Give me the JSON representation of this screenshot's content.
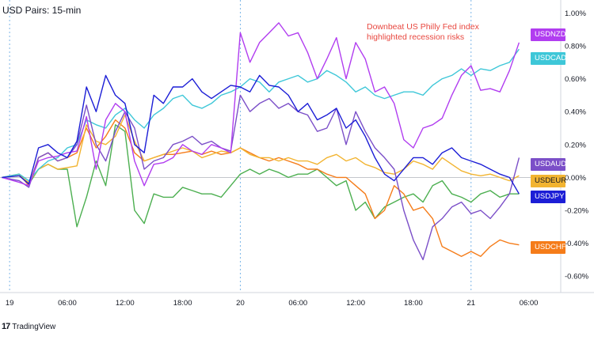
{
  "title": "USD Pairs: 15-min",
  "brand": "TradingView",
  "brand_icon": "tradingview-logo-icon",
  "annotation": "Downbeat US Philly Fed index\nhighlighted recession risks",
  "colors": {
    "USDNZD": "#b13df0",
    "USDCAD": "#3ec7d8",
    "USDAUD": "#7b4fc8",
    "USDEUR": "#f2b431",
    "USDJPY": "#1c1ed6",
    "USDCHF": "#f57c19",
    "green": "#4caf50",
    "annotation": "#e8473f",
    "grid": "#e0e3eb",
    "session": "#7cb6e8"
  },
  "chart_data": {
    "type": "line",
    "title": "USD Pairs: 15-min",
    "ylim": [
      -0.7,
      1.05
    ],
    "y_ticks": [
      "1.00%",
      "0.80%",
      "0.60%",
      "0.40%",
      "0.20%",
      "0.00%",
      "-0.20%",
      "-0.40%",
      "-0.60%"
    ],
    "x_ticks": [
      "19",
      "06:00",
      "12:00",
      "18:00",
      "20",
      "06:00",
      "12:00",
      "18:00",
      "21",
      "06:00"
    ],
    "x_tick_hours": [
      0,
      6,
      12,
      18,
      24,
      30,
      36,
      42,
      48,
      54
    ],
    "session_breaks_hours": [
      0,
      24,
      48
    ],
    "xlim_hours": [
      -1,
      57
    ],
    "series": [
      {
        "name": "USDNZD",
        "last_label": "USDNZD",
        "x": [
          -0.8,
          1,
          2,
          3,
          4,
          5,
          6,
          7,
          8,
          9,
          10,
          11,
          12,
          13,
          14,
          15,
          16,
          17,
          18,
          19,
          20,
          21,
          22,
          23,
          24,
          25,
          26,
          27,
          28,
          29,
          30,
          31,
          32,
          33,
          34,
          35,
          36,
          37,
          38,
          39,
          40,
          41,
          42,
          43,
          44,
          45,
          46,
          47,
          48,
          49,
          50,
          51,
          52,
          53
        ],
        "y": [
          0.0,
          -0.03,
          -0.05,
          0.1,
          0.12,
          0.13,
          0.15,
          0.16,
          0.37,
          0.05,
          0.35,
          0.45,
          0.4,
          0.1,
          -0.05,
          0.08,
          0.09,
          0.12,
          0.2,
          0.16,
          0.14,
          0.2,
          0.18,
          0.15,
          0.88,
          0.7,
          0.82,
          0.88,
          0.94,
          0.86,
          0.88,
          0.76,
          0.6,
          0.72,
          0.85,
          0.6,
          0.82,
          0.72,
          0.52,
          0.55,
          0.45,
          0.23,
          0.18,
          0.3,
          0.32,
          0.36,
          0.5,
          0.62,
          0.68,
          0.53,
          0.54,
          0.52,
          0.65,
          0.82
        ]
      },
      {
        "name": "USDCAD",
        "last_label": "USDCAD",
        "x": [
          -0.8,
          1,
          2,
          3,
          4,
          5,
          6,
          7,
          8,
          9,
          10,
          11,
          12,
          13,
          14,
          15,
          16,
          17,
          18,
          19,
          20,
          21,
          22,
          23,
          24,
          25,
          26,
          27,
          28,
          29,
          30,
          31,
          32,
          33,
          34,
          35,
          36,
          37,
          38,
          39,
          40,
          41,
          42,
          43,
          44,
          45,
          46,
          47,
          48,
          49,
          50,
          51,
          52,
          53
        ],
        "y": [
          0.0,
          0.02,
          -0.02,
          0.05,
          0.1,
          0.12,
          0.18,
          0.2,
          0.35,
          0.32,
          0.3,
          0.38,
          0.42,
          0.35,
          0.3,
          0.38,
          0.42,
          0.48,
          0.5,
          0.44,
          0.42,
          0.45,
          0.5,
          0.52,
          0.55,
          0.6,
          0.58,
          0.52,
          0.58,
          0.6,
          0.62,
          0.58,
          0.6,
          0.65,
          0.62,
          0.58,
          0.52,
          0.55,
          0.5,
          0.48,
          0.5,
          0.52,
          0.52,
          0.5,
          0.56,
          0.6,
          0.62,
          0.66,
          0.62,
          0.66,
          0.65,
          0.68,
          0.7,
          0.78
        ]
      },
      {
        "name": "USDAUD",
        "last_label": "USDAUD",
        "x": [
          -0.8,
          1,
          2,
          3,
          4,
          5,
          6,
          7,
          8,
          9,
          10,
          11,
          12,
          13,
          14,
          15,
          16,
          17,
          18,
          19,
          20,
          21,
          22,
          23,
          24,
          25,
          26,
          27,
          28,
          29,
          30,
          31,
          32,
          33,
          34,
          35,
          36,
          37,
          38,
          39,
          40,
          41,
          42,
          43,
          44,
          45,
          46,
          47,
          48,
          49,
          50,
          51,
          52,
          53
        ],
        "y": [
          0.0,
          -0.02,
          -0.06,
          0.12,
          0.15,
          0.1,
          0.12,
          0.2,
          0.44,
          0.2,
          0.1,
          0.28,
          0.4,
          0.3,
          0.05,
          0.1,
          0.12,
          0.2,
          0.22,
          0.25,
          0.2,
          0.22,
          0.18,
          0.16,
          0.5,
          0.4,
          0.45,
          0.48,
          0.42,
          0.45,
          0.4,
          0.38,
          0.28,
          0.3,
          0.42,
          0.2,
          0.4,
          0.28,
          0.18,
          0.12,
          0.05,
          -0.2,
          -0.38,
          -0.5,
          -0.3,
          -0.25,
          -0.18,
          -0.15,
          -0.22,
          -0.2,
          -0.25,
          -0.18,
          -0.1,
          0.12
        ]
      },
      {
        "name": "USDEUR",
        "last_label": "USDEUR",
        "x": [
          -0.8,
          1,
          2,
          3,
          4,
          5,
          6,
          7,
          8,
          9,
          10,
          11,
          12,
          13,
          14,
          15,
          16,
          17,
          18,
          19,
          20,
          21,
          22,
          23,
          24,
          25,
          26,
          27,
          28,
          29,
          30,
          31,
          32,
          33,
          34,
          35,
          36,
          37,
          38,
          39,
          40,
          41,
          42,
          43,
          44,
          45,
          46,
          47,
          48,
          49,
          50,
          51,
          52,
          53
        ],
        "y": [
          0.0,
          0.01,
          -0.03,
          0.05,
          0.08,
          0.05,
          0.06,
          0.07,
          0.32,
          0.22,
          0.2,
          0.25,
          0.38,
          0.22,
          0.1,
          0.12,
          0.14,
          0.16,
          0.18,
          0.16,
          0.12,
          0.14,
          0.16,
          0.15,
          0.18,
          0.14,
          0.12,
          0.12,
          0.1,
          0.12,
          0.1,
          0.1,
          0.08,
          0.12,
          0.14,
          0.1,
          0.12,
          0.08,
          0.06,
          0.03,
          0.02,
          0.05,
          0.1,
          0.08,
          0.05,
          0.12,
          0.08,
          0.04,
          0.02,
          0.01,
          0.02,
          0.0,
          -0.02,
          0.01
        ]
      },
      {
        "name": "USDJPY",
        "last_label": "USDJPY",
        "x": [
          -0.8,
          1,
          2,
          3,
          4,
          5,
          6,
          7,
          8,
          9,
          10,
          11,
          12,
          13,
          14,
          15,
          16,
          17,
          18,
          19,
          20,
          21,
          22,
          23,
          24,
          25,
          26,
          27,
          28,
          29,
          30,
          31,
          32,
          33,
          34,
          35,
          36,
          37,
          38,
          39,
          40,
          41,
          42,
          43,
          44,
          45,
          46,
          47,
          48,
          49,
          50,
          51,
          52,
          53
        ],
        "y": [
          0.0,
          0.01,
          -0.04,
          0.18,
          0.2,
          0.15,
          0.12,
          0.22,
          0.55,
          0.4,
          0.62,
          0.5,
          0.45,
          0.2,
          0.15,
          0.5,
          0.45,
          0.55,
          0.55,
          0.6,
          0.52,
          0.48,
          0.52,
          0.56,
          0.55,
          0.52,
          0.62,
          0.56,
          0.55,
          0.5,
          0.4,
          0.45,
          0.35,
          0.38,
          0.42,
          0.3,
          0.35,
          0.25,
          0.12,
          0.02,
          -0.02,
          0.05,
          0.12,
          0.12,
          0.08,
          0.15,
          0.18,
          0.12,
          0.1,
          0.08,
          0.05,
          0.02,
          0.0,
          -0.1
        ]
      },
      {
        "name": "USDCHF",
        "last_label": "USDCHF",
        "x": [
          -0.8,
          1,
          2,
          3,
          4,
          5,
          6,
          7,
          8,
          9,
          10,
          11,
          12,
          13,
          14,
          15,
          16,
          17,
          18,
          19,
          20,
          21,
          22,
          23,
          24,
          25,
          26,
          27,
          28,
          29,
          30,
          31,
          32,
          33,
          34,
          35,
          36,
          37,
          38,
          39,
          40,
          41,
          42,
          43,
          44,
          45,
          46,
          47,
          48,
          49,
          50,
          51,
          52,
          53
        ],
        "y": [
          0.0,
          0.02,
          -0.05,
          0.12,
          0.15,
          0.1,
          0.12,
          0.15,
          0.3,
          0.18,
          0.25,
          0.35,
          0.3,
          0.15,
          0.1,
          0.12,
          0.14,
          0.14,
          0.15,
          0.16,
          0.14,
          0.16,
          0.14,
          0.15,
          0.18,
          0.15,
          0.12,
          0.1,
          0.12,
          0.1,
          0.08,
          0.05,
          0.05,
          0.02,
          0.0,
          0.0,
          -0.05,
          -0.1,
          -0.25,
          -0.2,
          -0.05,
          -0.1,
          -0.2,
          -0.18,
          -0.25,
          -0.42,
          -0.45,
          -0.48,
          -0.45,
          -0.48,
          -0.42,
          -0.38,
          -0.4,
          -0.41
        ]
      },
      {
        "name": "",
        "x": [
          -0.8,
          1,
          2,
          3,
          4,
          5,
          6,
          7,
          8,
          9,
          10,
          11,
          12,
          13,
          14,
          15,
          16,
          17,
          18,
          19,
          20,
          21,
          22,
          23,
          24,
          25,
          26,
          27,
          28,
          29,
          30,
          31,
          32,
          33,
          34,
          35,
          36,
          37,
          38,
          39,
          40,
          41,
          42,
          43,
          44,
          45,
          46,
          47,
          48,
          49,
          50,
          51,
          52,
          53
        ],
        "y": [
          0.0,
          0.02,
          -0.04,
          0.05,
          0.08,
          0.05,
          0.05,
          -0.3,
          -0.12,
          0.1,
          -0.05,
          0.32,
          0.28,
          -0.2,
          -0.28,
          -0.1,
          -0.12,
          -0.12,
          -0.06,
          -0.08,
          -0.1,
          -0.1,
          -0.12,
          -0.05,
          0.02,
          0.05,
          0.02,
          0.05,
          0.03,
          0.0,
          0.02,
          0.02,
          0.05,
          0.0,
          -0.05,
          -0.02,
          -0.2,
          -0.15,
          -0.25,
          -0.18,
          -0.15,
          -0.12,
          -0.1,
          -0.15,
          -0.05,
          -0.02,
          -0.1,
          -0.12,
          -0.15,
          -0.1,
          -0.08,
          -0.12,
          -0.1,
          -0.1
        ]
      }
    ]
  }
}
